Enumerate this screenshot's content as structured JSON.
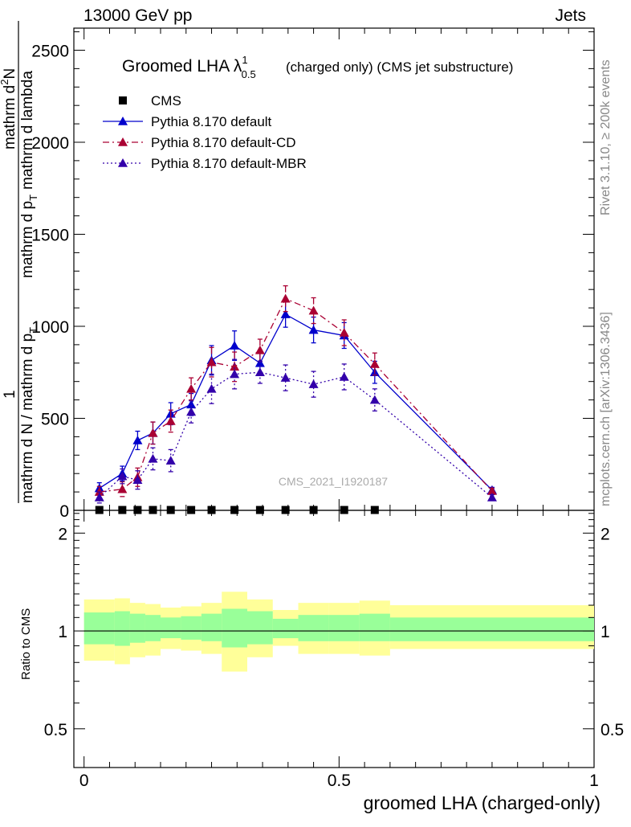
{
  "header": {
    "left": "13000 GeV pp",
    "right": "Jets"
  },
  "side_text": {
    "rivet": "Rivet 3.1.10, ≥ 200k events",
    "mcplots": "mcplots.cern.ch [arXiv:1306.3436]"
  },
  "chart_data": [
    {
      "type": "scatter",
      "title": "Groomed LHA λ",
      "title_sup": "1",
      "title_sub": "0.5",
      "title_suffix": "(charged only) (CMS jet substructure)",
      "ylabel_parts": {
        "left_num": "1",
        "left_den": "mathrm d N / mathrm d p",
        "left_den_sub": "T",
        "right_num": "mathrm d",
        "right_num_sup": "2",
        "right_num_tail": "N",
        "right_den": "mathrm d p",
        "right_den_sub": "T",
        "right_den_tail": "mathrm d lambda"
      },
      "watermark": "CMS_2021_I1920187",
      "ylim": [
        0,
        2620
      ],
      "xlim": [
        -0.02,
        1.0
      ],
      "yticks": [
        "0",
        "500",
        "1000",
        "1500",
        "2000",
        "2500"
      ],
      "ytick_values": [
        0,
        500,
        1000,
        1500,
        2000,
        2500
      ],
      "legend_position": "top-left",
      "series": [
        {
          "name": "CMS",
          "color": "#000000",
          "marker": "square",
          "x": [
            0.03,
            0.075,
            0.105,
            0.135,
            0.17,
            0.21,
            0.25,
            0.295,
            0.345,
            0.395,
            0.45,
            0.51,
            0.57
          ],
          "y": [
            2,
            2,
            2,
            2,
            2,
            2,
            2,
            2,
            2,
            2,
            2,
            2,
            2
          ]
        },
        {
          "name": "Pythia 8.170 default",
          "color": "#0000cc",
          "marker": "triangle",
          "dash": "",
          "x": [
            0.03,
            0.075,
            0.105,
            0.135,
            0.17,
            0.21,
            0.25,
            0.295,
            0.345,
            0.395,
            0.45,
            0.51,
            0.57,
            0.8
          ],
          "y": [
            120,
            200,
            380,
            420,
            525,
            575,
            815,
            895,
            800,
            1065,
            980,
            950,
            750,
            110
          ],
          "err": [
            30,
            40,
            50,
            60,
            60,
            60,
            80,
            80,
            60,
            70,
            70,
            70,
            60,
            15
          ]
        },
        {
          "name": "Pythia 8.170 default-CD",
          "color": "#aa0033",
          "marker": "triangle",
          "dash": "8,4,2,4",
          "x": [
            0.03,
            0.075,
            0.105,
            0.135,
            0.17,
            0.21,
            0.25,
            0.295,
            0.345,
            0.395,
            0.45,
            0.51,
            0.57,
            0.8
          ],
          "y": [
            100,
            115,
            180,
            420,
            485,
            660,
            805,
            780,
            870,
            1150,
            1085,
            965,
            795,
            105
          ],
          "err": [
            30,
            40,
            50,
            60,
            60,
            60,
            80,
            80,
            60,
            70,
            70,
            70,
            60,
            15
          ]
        },
        {
          "name": "Pythia 8.170 default-MBR",
          "color": "#3300aa",
          "marker": "triangle",
          "dash": "2,3",
          "x": [
            0.03,
            0.075,
            0.105,
            0.135,
            0.17,
            0.21,
            0.25,
            0.295,
            0.345,
            0.395,
            0.45,
            0.51,
            0.57,
            0.8
          ],
          "y": [
            70,
            185,
            165,
            280,
            270,
            535,
            660,
            740,
            750,
            720,
            685,
            725,
            600,
            70
          ],
          "err": [
            30,
            40,
            50,
            60,
            60,
            60,
            80,
            80,
            60,
            70,
            70,
            70,
            60,
            15
          ]
        }
      ]
    },
    {
      "type": "area",
      "ylabel": "Ratio to CMS",
      "xlabel": "groomed LHA (charged-only)",
      "ylim": [
        0.38,
        2.35
      ],
      "xlim": [
        -0.02,
        1.0
      ],
      "yticks": [
        "0.5",
        "1",
        "2"
      ],
      "ytick_values": [
        0.5,
        1,
        2
      ],
      "xticks": [
        "0",
        "0.5",
        "1"
      ],
      "xtick_values": [
        0,
        0.5,
        1
      ],
      "reference": 1,
      "bins": [
        {
          "lo": 0.0,
          "hi": 0.06,
          "inner": [
            0.91,
            1.14
          ],
          "outer": [
            0.81,
            1.25
          ]
        },
        {
          "lo": 0.06,
          "hi": 0.09,
          "inner": [
            0.9,
            1.15
          ],
          "outer": [
            0.79,
            1.26
          ]
        },
        {
          "lo": 0.09,
          "hi": 0.12,
          "inner": [
            0.92,
            1.13
          ],
          "outer": [
            0.83,
            1.22
          ]
        },
        {
          "lo": 0.12,
          "hi": 0.15,
          "inner": [
            0.93,
            1.12
          ],
          "outer": [
            0.84,
            1.21
          ]
        },
        {
          "lo": 0.15,
          "hi": 0.19,
          "inner": [
            0.95,
            1.1
          ],
          "outer": [
            0.88,
            1.18
          ]
        },
        {
          "lo": 0.19,
          "hi": 0.23,
          "inner": [
            0.94,
            1.11
          ],
          "outer": [
            0.87,
            1.19
          ]
        },
        {
          "lo": 0.23,
          "hi": 0.27,
          "inner": [
            0.93,
            1.13
          ],
          "outer": [
            0.85,
            1.22
          ]
        },
        {
          "lo": 0.27,
          "hi": 0.32,
          "inner": [
            0.89,
            1.17
          ],
          "outer": [
            0.75,
            1.32
          ]
        },
        {
          "lo": 0.32,
          "hi": 0.37,
          "inner": [
            0.91,
            1.15
          ],
          "outer": [
            0.83,
            1.25
          ]
        },
        {
          "lo": 0.37,
          "hi": 0.42,
          "inner": [
            0.95,
            1.09
          ],
          "outer": [
            0.9,
            1.16
          ]
        },
        {
          "lo": 0.42,
          "hi": 0.48,
          "inner": [
            0.93,
            1.12
          ],
          "outer": [
            0.85,
            1.22
          ]
        },
        {
          "lo": 0.48,
          "hi": 0.54,
          "inner": [
            0.93,
            1.12
          ],
          "outer": [
            0.85,
            1.22
          ]
        },
        {
          "lo": 0.54,
          "hi": 0.6,
          "inner": [
            0.93,
            1.13
          ],
          "outer": [
            0.84,
            1.24
          ]
        },
        {
          "lo": 0.6,
          "hi": 1.0,
          "inner": [
            0.93,
            1.1
          ],
          "outer": [
            0.88,
            1.2
          ]
        }
      ]
    }
  ]
}
